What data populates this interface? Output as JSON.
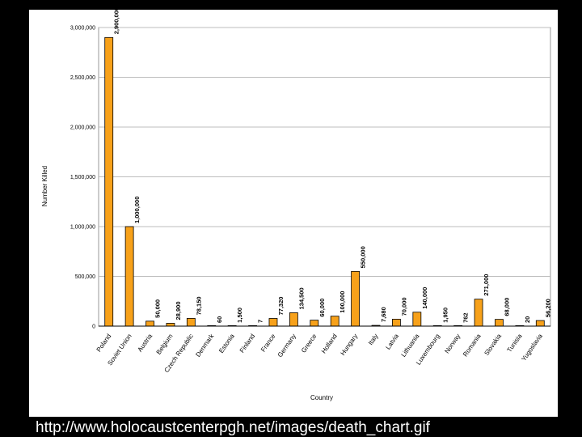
{
  "source_url": "http://www.holocaustcenterpgh.net/images/death_chart.gif",
  "colors": {
    "bar_fill": "#f7a11a",
    "bar_stroke": "#000000",
    "plot_border": "#999999",
    "gridline": "#bdbdbd",
    "background": "#ffffff",
    "page": "#000000"
  },
  "chart_data": {
    "type": "bar",
    "title": "",
    "xlabel": "Country",
    "ylabel": "Number Killed",
    "ylim": [
      0,
      3000000
    ],
    "yticks": [
      0,
      500000,
      1000000,
      1500000,
      2000000,
      2500000,
      3000000
    ],
    "ytick_labels": [
      "0",
      "500,000",
      "1,000,000",
      "1,500,000",
      "2,000,000",
      "2,500,000",
      "3,000,000"
    ],
    "grid": true,
    "legend": "none",
    "categories": [
      "Poland",
      "Soviet Union",
      "Austria",
      "Belgium",
      "Czech Republic",
      "Denmark",
      "Estonia",
      "Finland",
      "France",
      "Germany",
      "Greece",
      "Holland",
      "Hungary",
      "Italy",
      "Latvia",
      "Lithuania",
      "Luxembourg",
      "Norway",
      "Romania",
      "Slovakia",
      "Tunisia",
      "Yugoslavia"
    ],
    "values": [
      2900000,
      1000000,
      50000,
      28900,
      78150,
      60,
      1500,
      7,
      77320,
      134500,
      60000,
      100000,
      550000,
      7680,
      70000,
      140000,
      1950,
      762,
      271000,
      68000,
      20,
      56200
    ],
    "value_labels": [
      "2,900,000",
      "1,000,000",
      "50,000",
      "28,900",
      "78,150",
      "60",
      "1,500",
      "7",
      "77,320",
      "134,500",
      "60,000",
      "100,000",
      "550,000",
      "7,680",
      "70,000",
      "140,000",
      "1,950",
      "762",
      "271,000",
      "68,000",
      "20",
      "56,200"
    ]
  }
}
